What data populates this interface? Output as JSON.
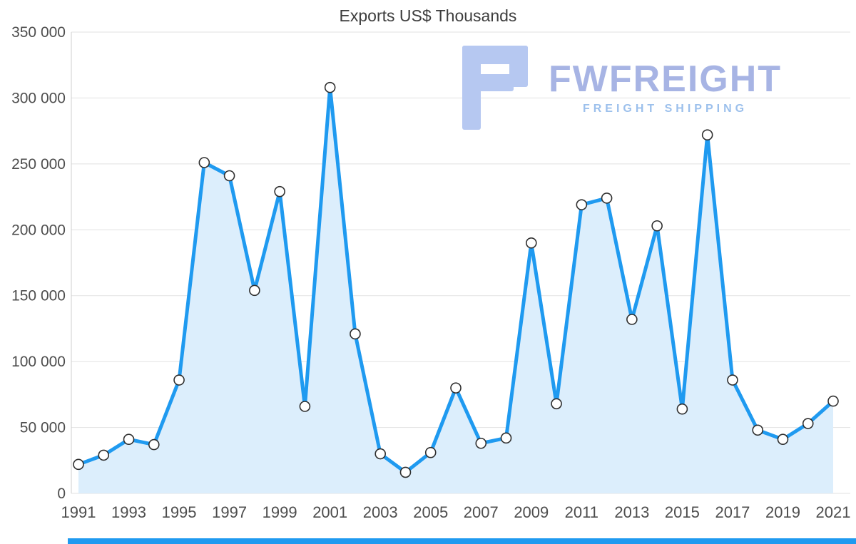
{
  "chart_data": {
    "type": "line",
    "title": "Exports US$ Thousands",
    "xlabel": "",
    "ylabel": "",
    "x": [
      1991,
      1992,
      1993,
      1994,
      1995,
      1996,
      1997,
      1998,
      1999,
      2000,
      2001,
      2002,
      2003,
      2004,
      2005,
      2006,
      2007,
      2008,
      2009,
      2010,
      2011,
      2012,
      2013,
      2014,
      2015,
      2016,
      2017,
      2018,
      2019,
      2020,
      2021
    ],
    "series": [
      {
        "name": "Exports US$ Thousands",
        "values": [
          22000,
          29000,
          41000,
          37000,
          86000,
          251000,
          241000,
          154000,
          229000,
          66000,
          308000,
          121000,
          30000,
          16000,
          31000,
          80000,
          38000,
          42000,
          190000,
          68000,
          219000,
          224000,
          132000,
          203000,
          64000,
          272000,
          86000,
          48000,
          41000,
          53000,
          70000
        ]
      }
    ],
    "ylim": [
      0,
      350000
    ],
    "y_ticks": [
      0,
      50000,
      100000,
      150000,
      200000,
      250000,
      300000,
      350000
    ],
    "y_tick_labels": [
      "0",
      "50 000",
      "100 000",
      "150 000",
      "200 000",
      "250 000",
      "300 000",
      "350 000"
    ],
    "x_tick_labels": [
      "1991",
      "1993",
      "1995",
      "1997",
      "1999",
      "2001",
      "2003",
      "2005",
      "2007",
      "2009",
      "2011",
      "2013",
      "2015",
      "2017",
      "2019",
      "2021"
    ],
    "grid": "horizontal",
    "legend": "none",
    "marker": "circle",
    "area_fill": true
  },
  "watermark": {
    "brand": "FWFREIGHT",
    "tagline": "FREIGHT SHIPPING"
  },
  "colors": {
    "line": "#1f9af0",
    "fill": "#dceefc",
    "marker_fill": "#ffffff",
    "marker_stroke": "#2f2f2f",
    "grid": "#e2e2e2",
    "axis_line": "#cfcfcf",
    "text": "#4d4d4d",
    "title": "#3d3d3d",
    "watermark_icon": "#b6c8f1",
    "watermark_brand": "#a7b4e4",
    "watermark_tagline": "#9cc0ec",
    "bottom_bar": "#1f9af0"
  }
}
